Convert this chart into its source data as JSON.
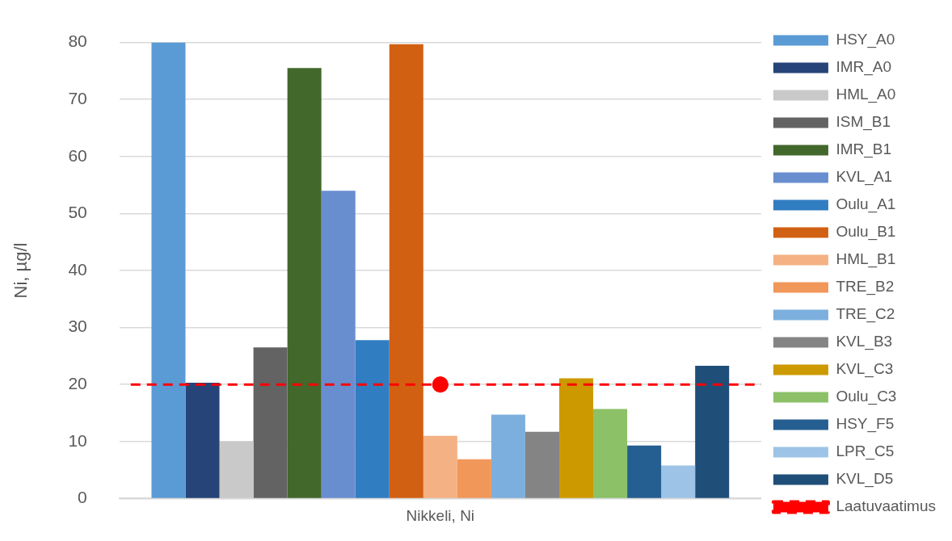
{
  "chart_data": {
    "type": "bar",
    "categories": [
      "Nikkeli, Ni"
    ],
    "ylabel": "Ni, µg/l",
    "ref_lines": [
      {
        "axis": "y",
        "value": 20,
        "color": "#ff0000",
        "line_style": "dashed"
      }
    ],
    "ylim": [
      0,
      80
    ],
    "yticks": [
      0,
      10,
      20,
      30,
      40,
      50,
      60,
      70,
      80
    ],
    "grid": "y",
    "legend": "right",
    "series": [
      {
        "name": "HSY_A0",
        "color": "#5b9bd5",
        "values": [
          80
        ]
      },
      {
        "name": "IMR_A0",
        "color": "#264478",
        "values": [
          20.3
        ]
      },
      {
        "name": "HML_A0",
        "color": "#c9c9c9",
        "values": [
          10
        ]
      },
      {
        "name": "ISM_B1",
        "color": "#636363",
        "values": [
          26.5
        ]
      },
      {
        "name": "IMR_B1",
        "color": "#43682b",
        "values": [
          75.5
        ]
      },
      {
        "name": "KVL_A1",
        "color": "#698ed0",
        "values": [
          54
        ]
      },
      {
        "name": "Oulu_A1",
        "color": "#317dc2",
        "values": [
          27.8
        ]
      },
      {
        "name": "Oulu_B1",
        "color": "#d26012",
        "values": [
          79.7
        ]
      },
      {
        "name": "HML_B1",
        "color": "#f4b183",
        "values": [
          11
        ]
      },
      {
        "name": "TRE_B2",
        "color": "#f1975a",
        "values": [
          6.9
        ]
      },
      {
        "name": "TRE_C2",
        "color": "#7cafdd",
        "values": [
          14.7
        ]
      },
      {
        "name": "KVL_B3",
        "color": "#848484",
        "values": [
          11.7
        ]
      },
      {
        "name": "KVL_C3",
        "color": "#cc9a00",
        "values": [
          21.1
        ]
      },
      {
        "name": "Oulu_C3",
        "color": "#8cc168",
        "values": [
          15.7
        ]
      },
      {
        "name": "HSY_F5",
        "color": "#255e91",
        "values": [
          9.3
        ]
      },
      {
        "name": "LPR_C5",
        "color": "#9dc3e6",
        "values": [
          5.8
        ]
      },
      {
        "name": "KVL_D5",
        "color": "#1f4e79",
        "values": [
          23.3
        ]
      },
      {
        "name": "Laatuvaatimus",
        "type": "line",
        "color": "#ff0000",
        "values": [
          20
        ],
        "marker": "circle",
        "line_style": "dashed"
      }
    ]
  }
}
